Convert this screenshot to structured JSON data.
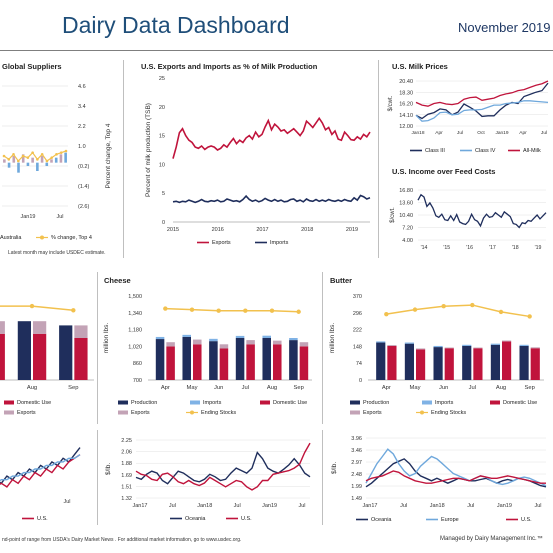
{
  "header": {
    "title": "Dairy Data Dashboard",
    "date": "November 2019"
  },
  "panels": {
    "suppliers": {
      "title": "Global Suppliers",
      "note": "Latest month may include USDEC estimate."
    },
    "trade": {
      "title": "U.S. Exports and Imports as % of Milk Production"
    },
    "milk_prices": {
      "title": "U.S. Milk Prices"
    },
    "iofc": {
      "title": "U.S. Income over Feed Costs"
    },
    "cheese": {
      "title": "Cheese"
    },
    "butter": {
      "title": "Butter"
    }
  },
  "footer": {
    "source": "nd-point of range from USDA's Dairy Market News . For additional market information, go to www.usdec.org.",
    "managed": "Managed by Dairy Management Inc.™"
  },
  "chart_data": [
    {
      "id": "suppliers",
      "type": "bar",
      "title": "Global Suppliers",
      "ylabel": "Percent change, Top 4",
      "yticks": [
        "4.6",
        "3.4",
        "2.2",
        "1.0",
        "(0.2)",
        "(1.4)",
        "(2.6)"
      ],
      "ylim": [
        -2.6,
        4.6
      ],
      "x_ticks": [
        "Jan19",
        "Jul"
      ],
      "legend": [
        "Australia",
        "% change, Top 4"
      ],
      "line_values": [
        0.4,
        0.2,
        0.5,
        0.1,
        0.4,
        0.3,
        0.6,
        0.2,
        0.5,
        0.1,
        0.3,
        0.5,
        0.6,
        0.7
      ],
      "bar_values": [
        0.2,
        -0.3,
        0.4,
        -0.6,
        0.5,
        -0.2,
        0.3,
        -0.5,
        0.4,
        -0.2,
        0.2,
        0.3,
        0.5,
        0.6
      ]
    },
    {
      "id": "trade",
      "type": "line",
      "title": "U.S. Exports and Imports as % of Milk Production",
      "ylabel": "Percent of milk production (TSB)",
      "yticks": [
        0,
        5,
        10,
        15,
        20,
        25
      ],
      "ylim": [
        0,
        25
      ],
      "x_ticks": [
        "2015",
        "2016",
        "2017",
        "2018",
        "2019"
      ],
      "series": [
        {
          "name": "Exports",
          "color": "#c0143c",
          "values": [
            11.0,
            13.0,
            15.5,
            16.2,
            15.0,
            14.2,
            13.8,
            13.0,
            12.8,
            13.2,
            12.6,
            13.0,
            13.2,
            13.0,
            12.5,
            12.8,
            13.4,
            13.0,
            13.8,
            14.5,
            13.6,
            14.2,
            13.8,
            14.6,
            15.0,
            14.4,
            15.6,
            14.8,
            15.2,
            16.5,
            17.6,
            16.0,
            17.0,
            16.5,
            15.8,
            16.0,
            15.4,
            15.8,
            16.2,
            15.6,
            15.0,
            15.8,
            17.5,
            17.0,
            16.4,
            17.2,
            18.0,
            17.2,
            16.0,
            16.4,
            15.2,
            15.8,
            14.4,
            14.2,
            15.6,
            15.0,
            14.3,
            14.2,
            14.8,
            14.4,
            15.2,
            14.8,
            15.6
          ]
        },
        {
          "name": "Imports",
          "color": "#1f2e5c",
          "values": [
            3.5,
            3.6,
            3.4,
            3.6,
            3.5,
            3.8,
            3.6,
            3.4,
            3.6,
            3.9,
            3.6,
            3.5,
            3.7,
            3.6,
            3.8,
            3.5,
            3.6,
            4.0,
            3.8,
            3.6,
            3.7,
            3.5,
            3.9,
            4.5,
            3.9,
            3.6,
            3.8,
            3.5,
            3.7,
            4.1,
            3.8,
            3.6,
            3.9,
            3.6,
            3.8,
            3.5,
            3.6,
            3.9,
            4.0,
            3.6,
            3.8,
            3.5,
            4.0,
            3.7,
            3.6,
            3.9,
            3.6,
            3.8,
            3.6,
            3.9,
            3.7,
            3.6,
            3.8,
            3.6,
            3.9,
            3.7,
            3.6,
            4.2,
            3.8,
            4.6,
            4.4,
            4.0,
            4.2
          ]
        }
      ]
    },
    {
      "id": "milk_prices",
      "type": "line",
      "title": "U.S. Milk Prices",
      "ylabel": "$/cwt.",
      "yticks": [
        "20.40",
        "18.30",
        "16.20",
        "14.10",
        "12.00"
      ],
      "ylim": [
        12.0,
        20.4
      ],
      "x_ticks": [
        "Jan18",
        "Apr",
        "Jul",
        "Oct",
        "Jan19",
        "Apr",
        "Jul"
      ],
      "series": [
        {
          "name": "Class III",
          "color": "#1f2e5c",
          "values": [
            14.0,
            13.4,
            14.2,
            14.5,
            15.2,
            15.0,
            14.1,
            14.6,
            16.1,
            15.5,
            14.8,
            13.8,
            13.9,
            13.9,
            15.0,
            15.9,
            16.4,
            16.2,
            17.5,
            17.9,
            18.3,
            18.6,
            20.0
          ]
        },
        {
          "name": "Class IV",
          "color": "#6fa8dc",
          "values": [
            14.0,
            12.9,
            13.0,
            13.5,
            14.5,
            14.6,
            14.1,
            14.2,
            14.9,
            15.0,
            15.0,
            15.1,
            15.5,
            15.9,
            15.9,
            16.2,
            16.3,
            16.4,
            16.7,
            16.7,
            16.6,
            16.5,
            16.4
          ]
        },
        {
          "name": "All-Milk",
          "color": "#c0143c",
          "values": [
            16.4,
            15.9,
            15.7,
            16.2,
            16.4,
            16.1,
            16.0,
            16.2,
            17.0,
            17.3,
            17.4,
            16.8,
            17.0,
            17.2,
            17.7,
            18.0,
            18.2,
            18.6,
            18.8,
            19.2,
            19.6,
            19.9,
            20.4
          ]
        }
      ]
    },
    {
      "id": "iofc",
      "type": "line",
      "title": "U.S. Income over Feed Costs",
      "ylabel": "$/cwt.",
      "yticks": [
        "16.80",
        "13.60",
        "10.40",
        "7.20",
        "4.00"
      ],
      "ylim": [
        4.0,
        16.8
      ],
      "x_ticks": [
        "'14",
        "'15",
        "'16",
        "'17",
        "'18",
        "'19"
      ],
      "series": [
        {
          "name": "IOFC",
          "color": "#1f2e5c",
          "values": [
            14.2,
            15.6,
            15.0,
            12.6,
            13.5,
            12.2,
            10.2,
            9.8,
            10.6,
            9.2,
            9.0,
            10.2,
            9.0,
            10.5,
            8.6,
            8.2,
            8.0,
            8.8,
            10.6,
            9.2,
            8.8,
            7.6,
            9.6,
            10.6,
            9.8,
            10.0,
            11.0,
            10.4,
            9.8,
            11.2,
            10.6,
            10.0,
            8.2,
            8.0,
            7.2,
            8.4,
            8.2,
            9.0,
            8.8,
            9.6,
            10.4,
            9.4,
            10.2,
            11.0
          ]
        }
      ]
    },
    {
      "id": "cheese",
      "type": "bar",
      "title": "Cheese",
      "ylabel": "million lbs.",
      "yticks": [
        "1,500",
        "1,340",
        "1,180",
        "1,020",
        "860",
        "700"
      ],
      "ylim": [
        700,
        1500
      ],
      "categories": [
        "Apr",
        "May",
        "Jun",
        "Jul",
        "Aug",
        "Sep"
      ],
      "series": [
        {
          "name": "Production",
          "color": "#1f2e5c",
          "values": [
            1090,
            1110,
            1070,
            1100,
            1100,
            1080
          ]
        },
        {
          "name": "Imports",
          "color": "#7fb2e5",
          "values": [
            20,
            20,
            22,
            20,
            22,
            20
          ]
        },
        {
          "name": "Domestic Use",
          "color": "#c0143c",
          "values": [
            1020,
            1040,
            1000,
            1040,
            1040,
            1020
          ]
        },
        {
          "name": "Exports",
          "color": "#c3a3b6",
          "values": [
            40,
            45,
            40,
            40,
            35,
            40
          ]
        },
        {
          "name": "Ending Stocks",
          "color": "#f2c14e",
          "values": [
            1380,
            1370,
            1360,
            1360,
            1360,
            1350
          ]
        }
      ]
    },
    {
      "id": "butter",
      "type": "bar",
      "title": "Butter",
      "ylabel": "million lbs.",
      "yticks": [
        "370",
        "296",
        "222",
        "148",
        "74",
        "0"
      ],
      "ylim": [
        0,
        370
      ],
      "categories": [
        "Apr",
        "May",
        "Jun",
        "Jul",
        "Aug",
        "Sep"
      ],
      "series": [
        {
          "name": "Production",
          "color": "#1f2e5c",
          "values": [
            165,
            160,
            145,
            150,
            155,
            150
          ]
        },
        {
          "name": "Imports",
          "color": "#7fb2e5",
          "values": [
            5,
            5,
            5,
            5,
            5,
            5
          ]
        },
        {
          "name": "Domestic Use",
          "color": "#c0143c",
          "values": [
            150,
            135,
            140,
            140,
            170,
            140
          ]
        },
        {
          "name": "Exports",
          "color": "#c3a3b6",
          "values": [
            4,
            4,
            3,
            3,
            4,
            4
          ]
        },
        {
          "name": "Ending Stocks",
          "color": "#f2c14e",
          "values": [
            290,
            310,
            325,
            330,
            300,
            280
          ]
        }
      ]
    },
    {
      "id": "dairy_left",
      "type": "bar",
      "ylim": [
        0,
        100
      ],
      "categories": [
        "Jul",
        "Aug",
        "Sep"
      ],
      "series": [
        {
          "name": "Production",
          "color": "#1f2e5c",
          "values": [
            70,
            70,
            65
          ]
        },
        {
          "name": "Domestic Use",
          "color": "#c0143c",
          "values": [
            55,
            55,
            50
          ]
        },
        {
          "name": "Exports",
          "color": "#c3a3b6",
          "values": [
            15,
            15,
            15
          ]
        },
        {
          "name": "Ending Stocks",
          "color": "#f2c14e",
          "values": [
            88,
            88,
            83
          ]
        }
      ]
    },
    {
      "id": "prices_left",
      "type": "line",
      "x_ticks": [
        "Jul"
      ],
      "series": [
        {
          "name": "",
          "color": "#1f2e5c",
          "values": [
            2,
            4,
            3,
            5,
            4,
            6,
            5,
            7,
            6,
            8,
            7,
            9,
            8,
            10,
            9,
            11,
            13
          ]
        },
        {
          "name": "U.S.",
          "color": "#c0143c",
          "values": [
            1,
            2,
            3,
            2,
            4,
            3,
            5,
            4,
            6,
            5,
            7,
            6,
            8,
            7,
            9,
            10,
            11
          ]
        },
        {
          "name": "",
          "color": "#6fa8dc",
          "values": [
            3,
            3,
            4,
            4,
            5,
            5,
            6,
            6,
            7,
            7,
            8,
            8,
            9,
            9,
            10,
            10,
            11
          ]
        }
      ]
    },
    {
      "id": "prices_mid",
      "type": "line",
      "ylabel": "$/lb.",
      "yticks": [
        "2.25",
        "2.06",
        "1.88",
        "1.69",
        "1.51",
        "1.32"
      ],
      "ylim": [
        1.32,
        2.25
      ],
      "x_ticks": [
        "Jan17",
        "Jul",
        "Jan18",
        "Jul",
        "Jan19",
        "Jul"
      ],
      "series": [
        {
          "name": "Oceania",
          "color": "#1f2e5c",
          "values": [
            1.65,
            1.62,
            1.7,
            1.75,
            1.72,
            1.6,
            1.55,
            1.65,
            1.75,
            1.72,
            1.66,
            1.6,
            1.58,
            1.62,
            1.7,
            1.66,
            1.6,
            1.62,
            1.72,
            1.8,
            1.76,
            1.72,
            1.8,
            2.05,
            1.95,
            1.8,
            1.75,
            1.72,
            1.78,
            1.85,
            1.95,
            1.85,
            1.72,
            1.66
          ]
        },
        {
          "name": "U.S.",
          "color": "#c0143c",
          "values": [
            1.75,
            1.7,
            1.68,
            1.62,
            1.6,
            1.7,
            1.72,
            1.66,
            1.58,
            1.55,
            1.6,
            1.55,
            1.52,
            1.56,
            1.65,
            1.6,
            1.55,
            1.5,
            1.55,
            1.6,
            1.58,
            1.5,
            1.45,
            1.5,
            1.6,
            1.6,
            1.7,
            1.72,
            1.74,
            1.76,
            1.8,
            1.86,
            2.05,
            2.2
          ]
        }
      ]
    },
    {
      "id": "prices_right",
      "type": "line",
      "ylabel": "$/lb.",
      "yticks": [
        "3.96",
        "3.46",
        "2.97",
        "2.48",
        "1.99",
        "1.49"
      ],
      "ylim": [
        1.49,
        3.96
      ],
      "x_ticks": [
        "Jan17",
        "Jul",
        "Jan18",
        "Jul",
        "Jan19",
        "Jul"
      ],
      "series": [
        {
          "name": "Oceania",
          "color": "#1f2e5c",
          "values": [
            1.95,
            2.1,
            2.3,
            2.5,
            2.7,
            2.9,
            3.0,
            3.1,
            2.9,
            2.6,
            2.4,
            2.3,
            2.2,
            2.3,
            2.2,
            2.1,
            2.2,
            2.3,
            2.25,
            2.2,
            2.2,
            2.25,
            2.3,
            2.2,
            2.1,
            2.2,
            2.25,
            2.2,
            2.3,
            2.25,
            2.2,
            2.1,
            2.0,
            1.95
          ]
        },
        {
          "name": "Europe",
          "color": "#6fa8dc",
          "values": [
            2.1,
            2.5,
            2.9,
            3.2,
            3.5,
            3.3,
            2.9,
            2.6,
            2.4,
            2.5,
            2.8,
            3.0,
            3.2,
            3.1,
            2.9,
            2.7,
            2.5,
            2.4,
            2.3,
            2.2,
            2.3,
            2.4,
            2.35,
            2.2,
            2.1,
            2.05,
            2.1,
            2.2,
            2.3,
            2.35,
            2.3,
            2.2,
            2.1,
            2.0
          ]
        },
        {
          "name": "U.S.",
          "color": "#c0143c",
          "values": [
            2.2,
            2.3,
            2.35,
            2.4,
            2.5,
            2.6,
            2.55,
            2.4,
            2.3,
            2.2,
            2.15,
            2.1,
            2.1,
            2.15,
            2.2,
            2.25,
            2.3,
            2.3,
            2.25,
            2.2,
            2.3,
            2.4,
            2.35,
            2.3,
            2.3,
            2.35,
            2.4,
            2.35,
            2.3,
            2.25,
            2.2,
            2.15,
            2.1,
            2.1
          ]
        }
      ]
    }
  ]
}
